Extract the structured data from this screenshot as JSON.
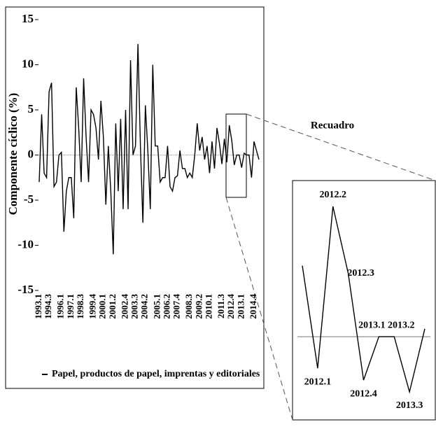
{
  "chart_data": [
    {
      "type": "line",
      "y_label": "Componente cíclico (%)",
      "categories": [
        "1993.1",
        null,
        null,
        null,
        "1994.3",
        null,
        null,
        null,
        null,
        "1996.1",
        null,
        null,
        null,
        "1997.1",
        null,
        null,
        null,
        "1998.3",
        null,
        null,
        null,
        null,
        "1999.4",
        null,
        null,
        null,
        "2000.1",
        null,
        null,
        null,
        "2001.2",
        null,
        null,
        null,
        null,
        "2002.4",
        null,
        null,
        null,
        "2003.3",
        null,
        null,
        null,
        "2004.2",
        null,
        null,
        null,
        null,
        "2005.1",
        null,
        null,
        null,
        "2006.2",
        null,
        null,
        null,
        "2007.4",
        null,
        null,
        null,
        null,
        "2008.3",
        null,
        null,
        null,
        "2009.2",
        null,
        null,
        null,
        "2010.1",
        null,
        null,
        null,
        null,
        "2011.3",
        null,
        null,
        null,
        "2012.4",
        null,
        null,
        null,
        "2013.1",
        null,
        null,
        null,
        null,
        "2014.4",
        null,
        null
      ],
      "series": [
        {
          "name": "Papel, productos de papel, imprentas y editoriales",
          "color": "#000000",
          "values": [
            -3,
            4.5,
            -2,
            -2.5,
            7,
            8,
            -3.5,
            -3,
            0,
            0.3,
            -8.5,
            -4,
            -2.5,
            -2.5,
            -7,
            7.5,
            3,
            -3,
            8.5,
            2,
            -3,
            5,
            4.5,
            3,
            -0.5,
            6,
            2,
            -5.5,
            1,
            -4,
            -11,
            3.5,
            -4,
            4,
            -6,
            5,
            -6,
            10.5,
            0,
            1,
            12.3,
            1,
            -7.5,
            5.5,
            0.5,
            -6,
            10,
            1,
            1,
            -3,
            -2.5,
            -2.5,
            1,
            -3.5,
            -4,
            -2.5,
            -2.3,
            0.5,
            -1.5,
            -1.5,
            -2.5,
            -2,
            -2.5,
            0,
            3.5,
            0.5,
            2,
            -0.5,
            1,
            -2,
            1.5,
            -1.5,
            3,
            1.3,
            -1,
            1.8,
            -0.8,
            3.3,
            1.6,
            -1.1,
            0,
            0,
            -1.4,
            0.2,
            0,
            0,
            -2.5,
            1.5,
            0.5,
            -0.5
          ]
        }
      ],
      "ylim": [
        -15,
        15
      ],
      "yticks": [
        -15,
        -10,
        -5,
        0,
        5,
        10,
        15
      ]
    },
    {
      "type": "inset",
      "title": "Recuadro",
      "categories": [
        null,
        "2012.1",
        "2012.2",
        "2012.3",
        "2012.4",
        "2013.1",
        "2013.2",
        "2013.3",
        null
      ],
      "values": [
        1.8,
        -0.8,
        3.3,
        1.6,
        -1.1,
        0,
        0,
        -1.4,
        0.2
      ]
    }
  ]
}
